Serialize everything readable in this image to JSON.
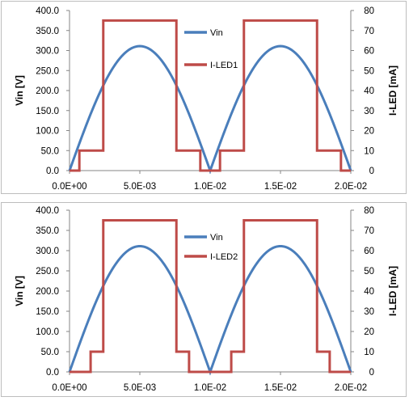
{
  "chart_data": [
    {
      "type": "line",
      "ylabel": "Vin [V]",
      "y2label": "I-LED [mA]",
      "xlim": [
        0,
        0.02
      ],
      "ylim": [
        0,
        400
      ],
      "y2lim": [
        0,
        80
      ],
      "x_ticks": [
        "0.0E+00",
        "5.0E-03",
        "1.0E-02",
        "1.5E-02",
        "2.0E-02"
      ],
      "y_ticks": [
        "0.0",
        "50.0",
        "100.0",
        "150.0",
        "200.0",
        "250.0",
        "300.0",
        "350.0",
        "400.0"
      ],
      "y2_ticks": [
        "0",
        "10",
        "20",
        "30",
        "40",
        "50",
        "60",
        "70",
        "80"
      ],
      "legend_position": "top-center",
      "grid": false,
      "series": [
        {
          "name": "Vin",
          "axis": "left",
          "color": "#4a7ebb",
          "shape": "abs-sine",
          "peak": 311,
          "period": 0.02
        },
        {
          "name": "I-LED1",
          "axis": "right",
          "color": "#be4b48",
          "x": [
            0,
            0.0007,
            0.0007,
            0.0024,
            0.0024,
            0.0076,
            0.0076,
            0.0093,
            0.0093,
            0.0107,
            0.0107,
            0.0124,
            0.0124,
            0.0176,
            0.0176,
            0.0193,
            0.0193,
            0.02
          ],
          "y": [
            0,
            0,
            10,
            10,
            75,
            75,
            10,
            10,
            0,
            0,
            10,
            10,
            75,
            75,
            10,
            10,
            0,
            0
          ]
        }
      ]
    },
    {
      "type": "line",
      "ylabel": "Vin [V]",
      "y2label": "I-LED [mA]",
      "xlim": [
        0,
        0.02
      ],
      "ylim": [
        0,
        400
      ],
      "y2lim": [
        0,
        80
      ],
      "x_ticks": [
        "0.0E+00",
        "5.0E-03",
        "1.0E-02",
        "1.5E-02",
        "2.0E-02"
      ],
      "y_ticks": [
        "0.0",
        "50.0",
        "100.0",
        "150.0",
        "200.0",
        "250.0",
        "300.0",
        "350.0",
        "400.0"
      ],
      "y2_ticks": [
        "0",
        "10",
        "20",
        "30",
        "40",
        "50",
        "60",
        "70",
        "80"
      ],
      "legend_position": "top-center",
      "grid": false,
      "series": [
        {
          "name": "Vin",
          "axis": "left",
          "color": "#4a7ebb",
          "shape": "abs-sine",
          "peak": 311,
          "period": 0.02
        },
        {
          "name": "I-LED2",
          "axis": "right",
          "color": "#be4b48",
          "x": [
            0,
            0.0015,
            0.0015,
            0.0024,
            0.0024,
            0.0076,
            0.0076,
            0.0085,
            0.0085,
            0.0115,
            0.0115,
            0.0124,
            0.0124,
            0.0176,
            0.0176,
            0.0185,
            0.0185,
            0.02
          ],
          "y": [
            0,
            0,
            10,
            10,
            75,
            75,
            10,
            10,
            0,
            0,
            10,
            10,
            75,
            75,
            10,
            10,
            0,
            0
          ]
        }
      ]
    }
  ]
}
